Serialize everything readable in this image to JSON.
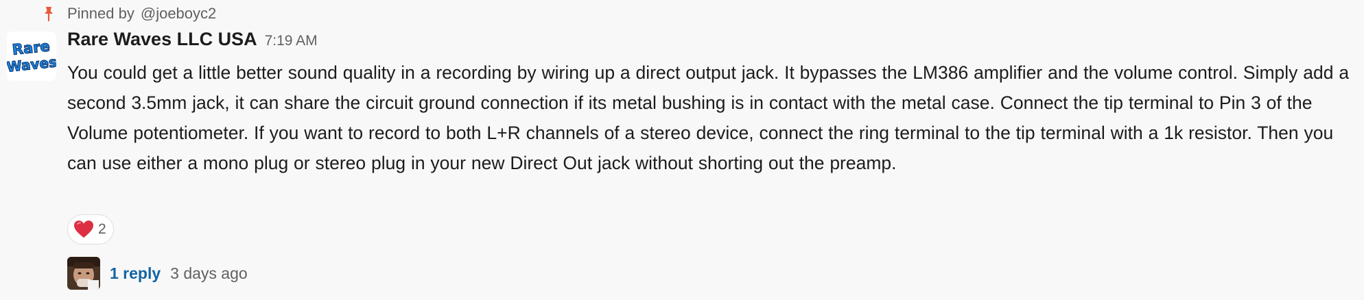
{
  "pin": {
    "icon": "pushpin-icon",
    "prefix": "Pinned by",
    "user": "@joeboyc2",
    "icon_color": "#e8593c"
  },
  "message": {
    "avatar_icon": "rare-waves-logo",
    "avatar_logo_text": "Rare Waves",
    "sender": "Rare Waves LLC USA",
    "time": "7:19 AM",
    "text": "You could get a little better sound quality in a recording by wiring up a direct output jack.  It bypasses the LM386 amplifier and the volume control.  Simply add a second 3.5mm jack, it can share the circuit ground connection if its metal bushing is in contact with the metal case.  Connect the tip terminal to Pin 3 of the Volume potentiometer.  If you want to record to both L+R channels of a stereo device, connect the ring terminal to the tip terminal with a 1k resistor.  Then you can use either a mono plug or stereo plug in your new Direct Out jack without shorting out the preamp."
  },
  "reactions": [
    {
      "icon": "red-heart-icon",
      "count": "2"
    }
  ],
  "thread": {
    "avatar_icon": "user-avatar",
    "reply_label": "1 reply",
    "last_reply": "3 days ago"
  },
  "colors": {
    "background": "#f8f8f8",
    "text": "#1d1c1d",
    "muted": "#616061",
    "link": "#1264a3",
    "heart": "#dd2e44",
    "logo_blue": "#1e88e5"
  }
}
